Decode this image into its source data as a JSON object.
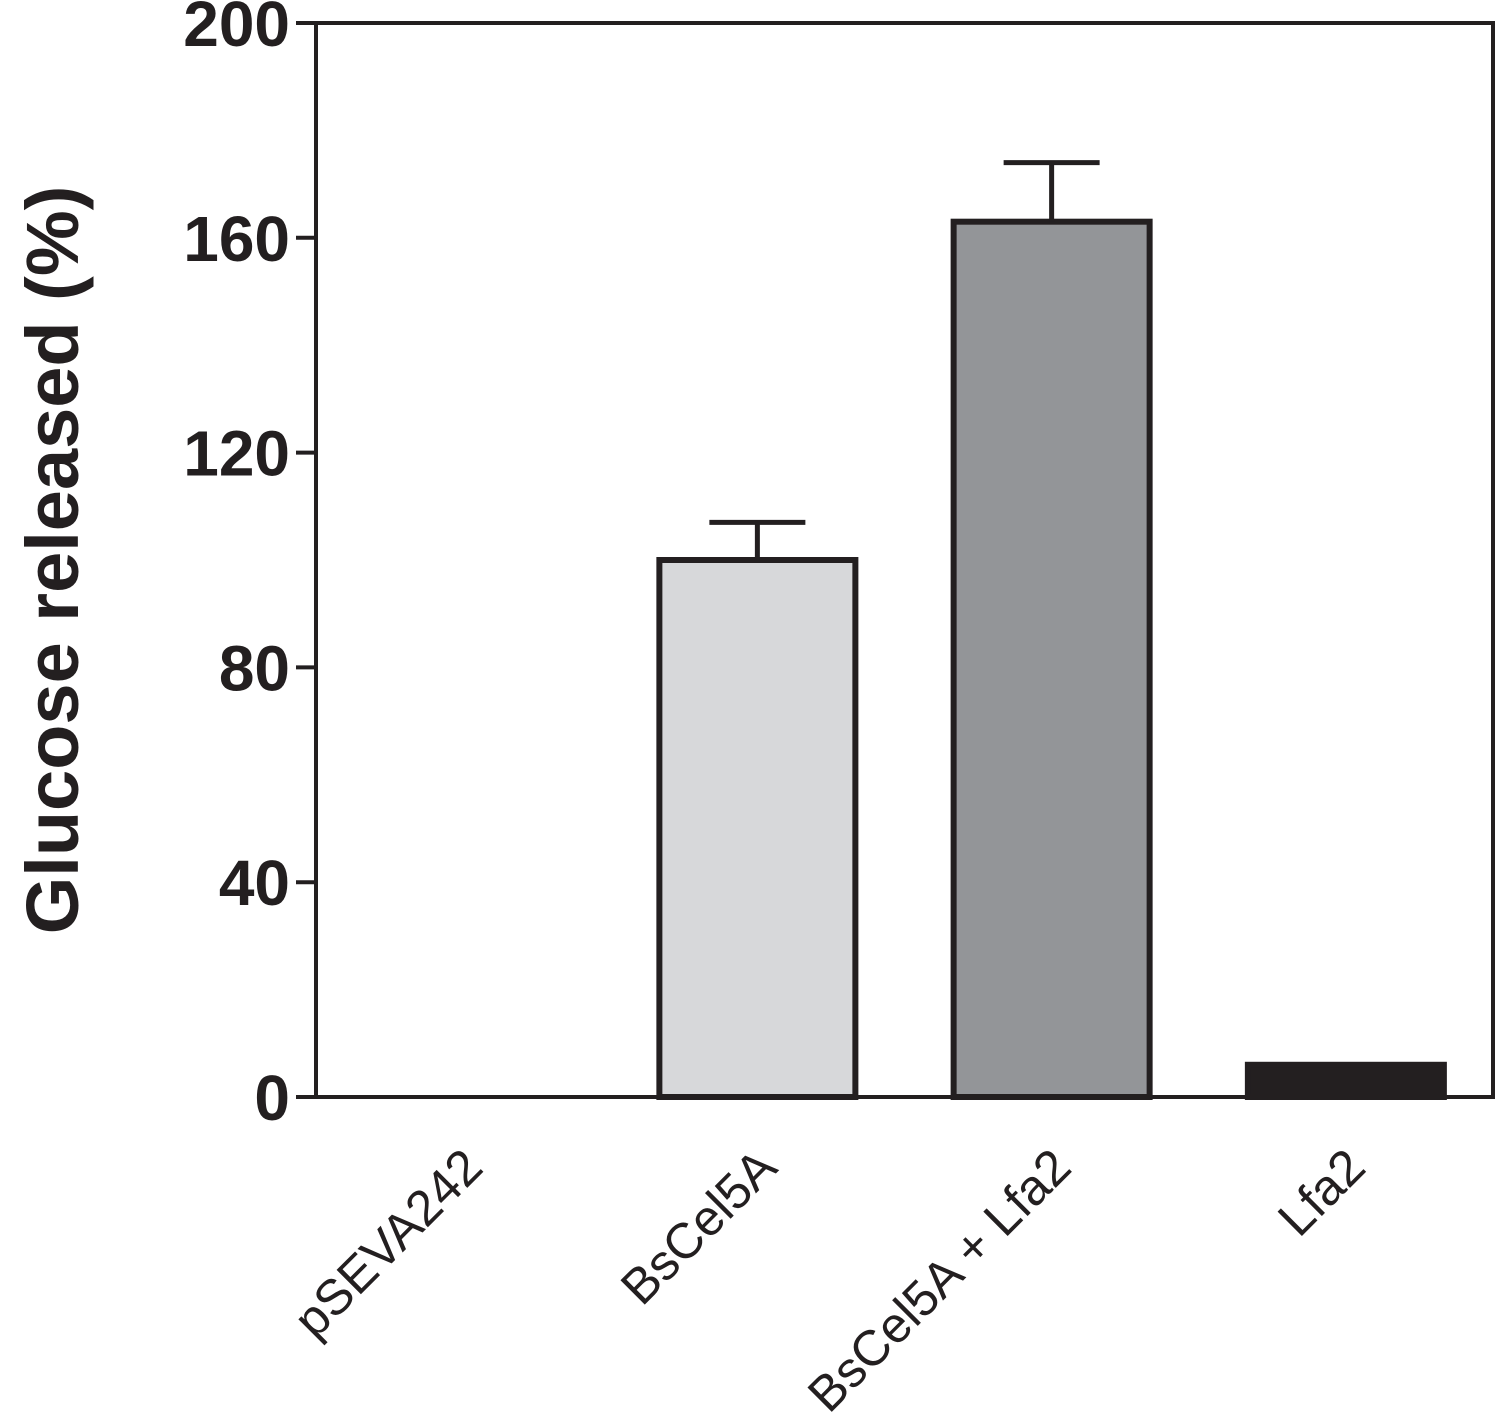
{
  "chart_data": {
    "type": "bar",
    "title": "",
    "xlabel": "",
    "ylabel": "Glucose released (%)",
    "ylim": [
      0,
      200
    ],
    "yticks": [
      0,
      40,
      80,
      120,
      160,
      200
    ],
    "categories": [
      "pSEVA242",
      "BsCel5A",
      "BsCel5A + Lfa2",
      "Lfa2"
    ],
    "values": [
      0,
      100,
      163,
      6
    ],
    "errors": [
      null,
      7,
      11,
      null
    ],
    "colors": [
      "#ffffff",
      "#d7d8da",
      "#939598",
      "#231f20"
    ],
    "grid": false,
    "legend": "none"
  }
}
